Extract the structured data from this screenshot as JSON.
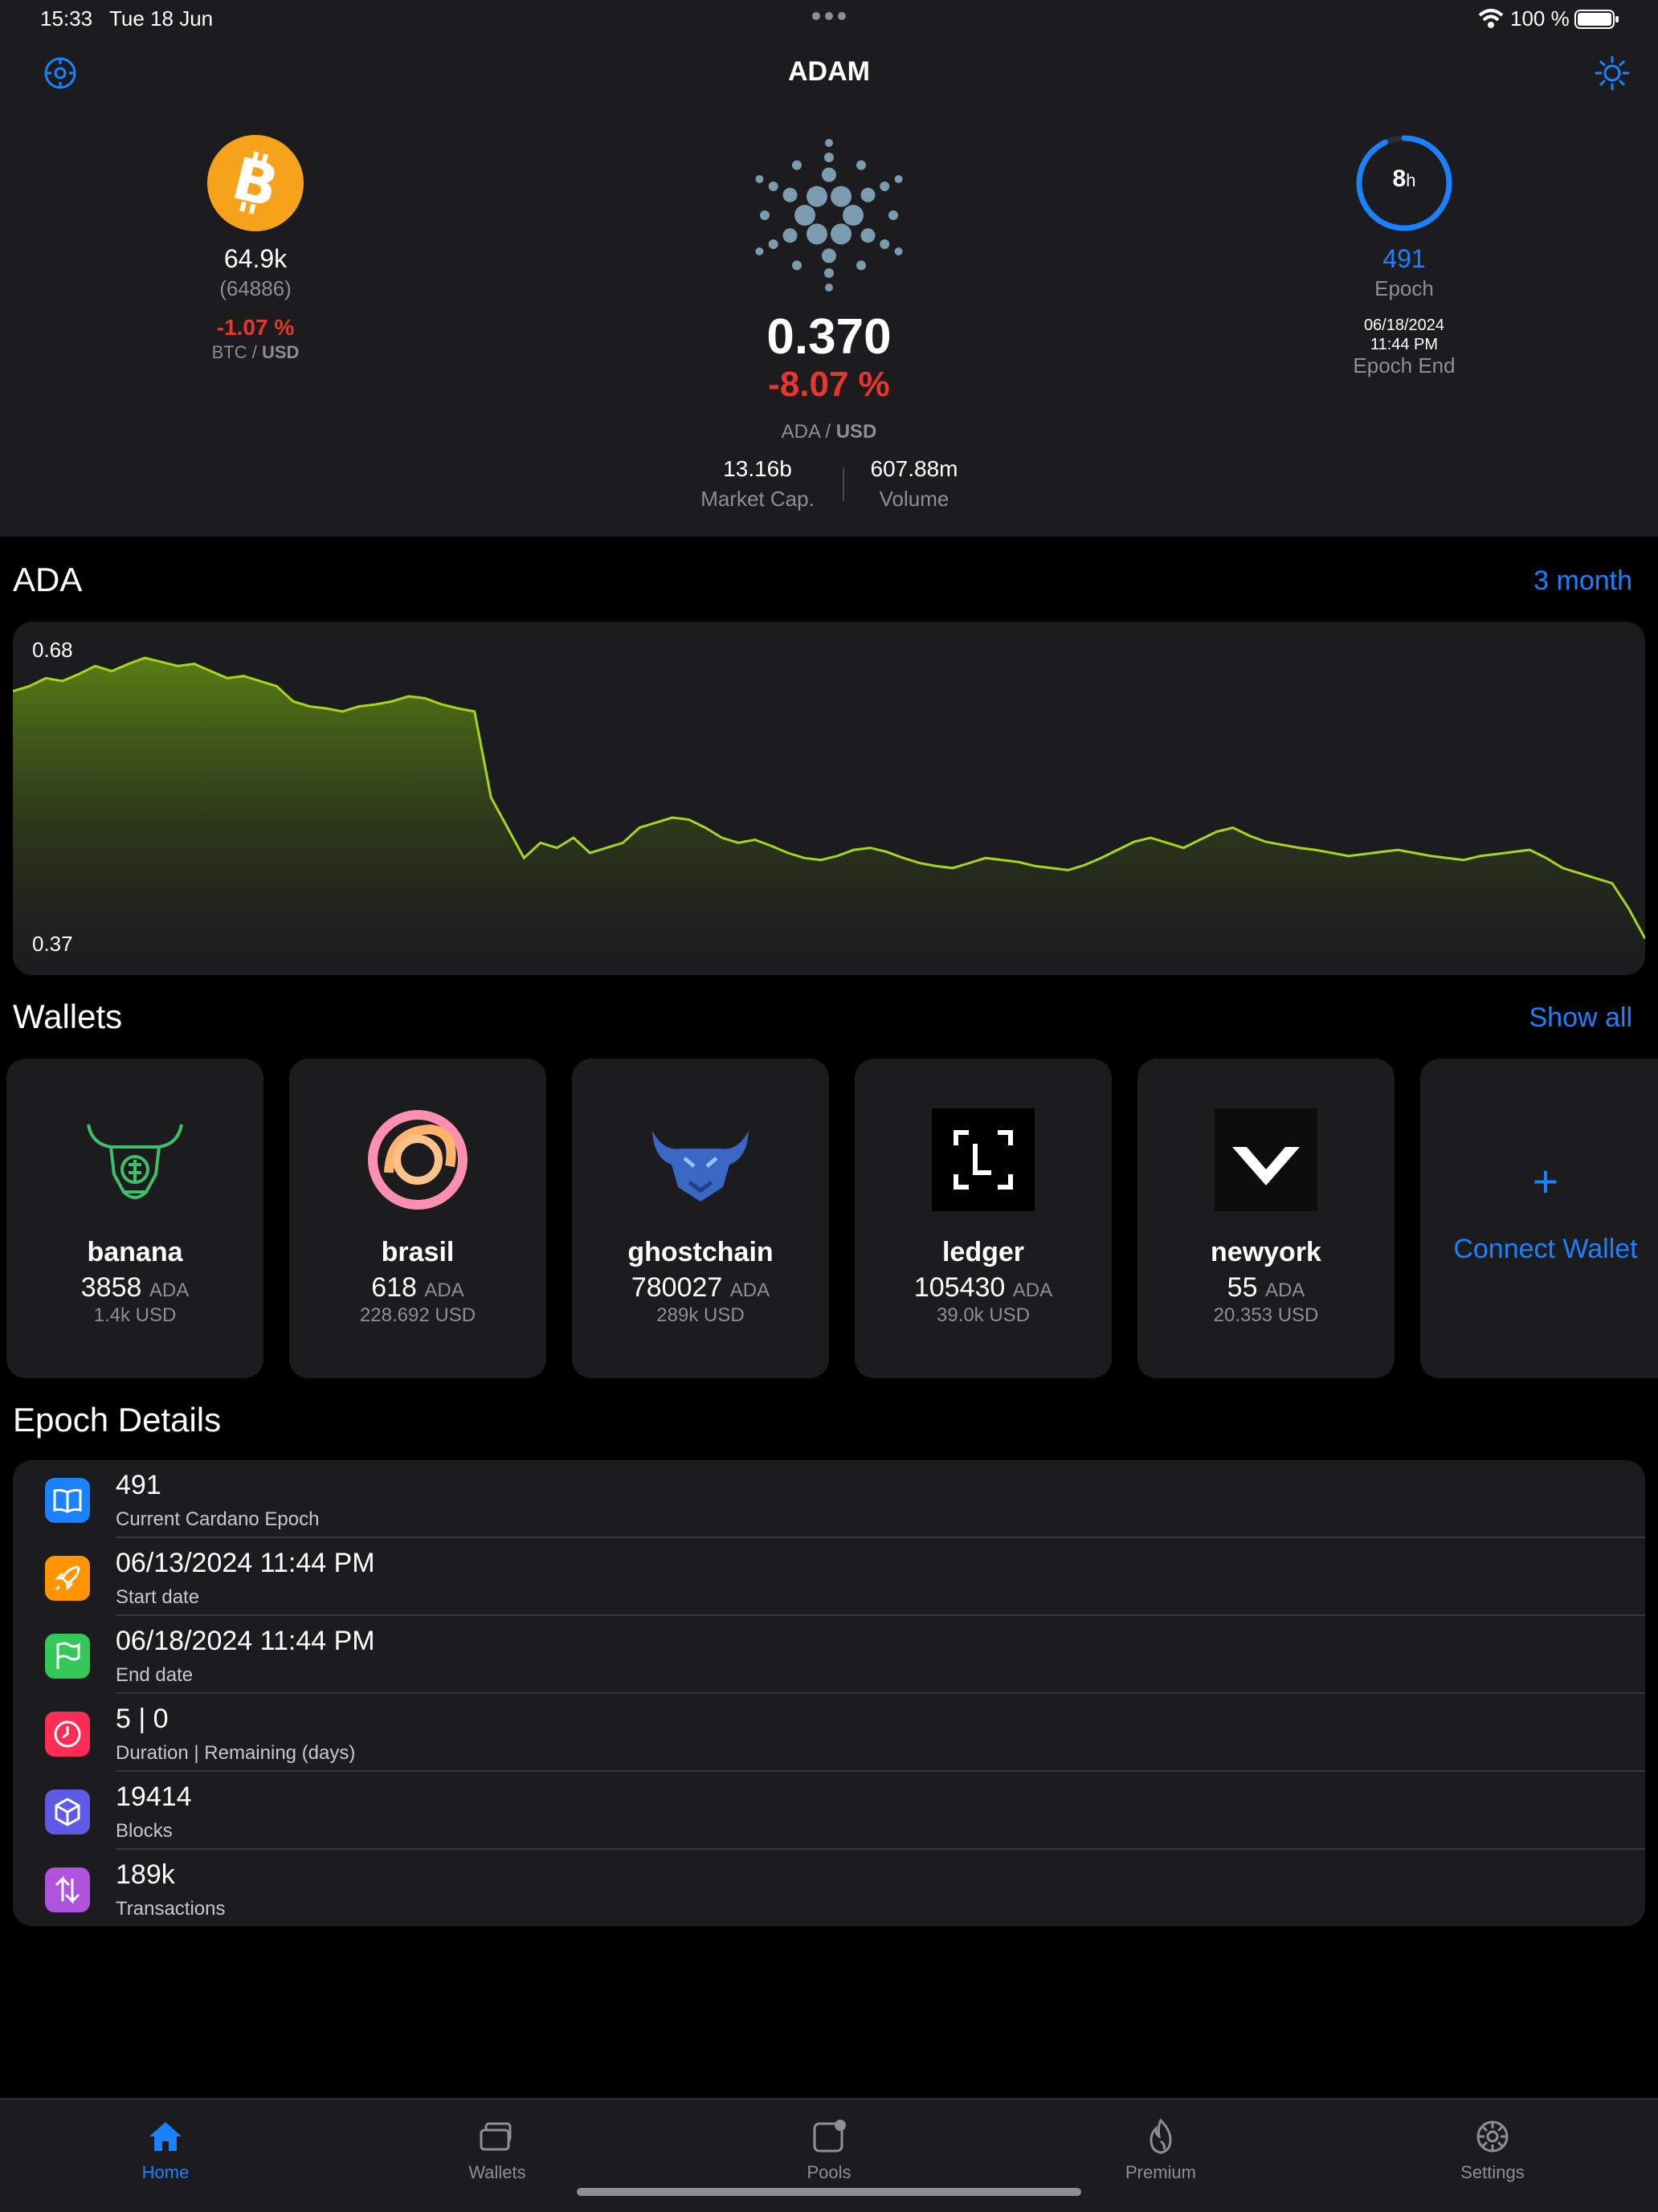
{
  "status_bar": {
    "time": "15:33",
    "date": "Tue 18 Jun",
    "battery": "100 %"
  },
  "header": {
    "title": "ADAM"
  },
  "btc": {
    "price": "64.9k",
    "price_exact": "(64886)",
    "change": "-1.07 %",
    "pair_base": "BTC",
    "pair_sep": " / ",
    "pair_quote": "USD"
  },
  "ada": {
    "price": "0.370",
    "change": "-8.07 %",
    "pair_base": "ADA",
    "pair_sep": " / ",
    "pair_quote": "USD",
    "market_cap": "13.16b",
    "market_cap_label": "Market Cap.",
    "volume": "607.88m",
    "volume_label": "Volume"
  },
  "epoch_summary": {
    "remaining_value": "8",
    "remaining_unit": "h",
    "remaining_fraction": 0.93,
    "epoch": "491",
    "epoch_label": "Epoch",
    "end_date": "06/18/2024",
    "end_time": "11:44 PM",
    "end_label": "Epoch End"
  },
  "chart_section": {
    "title": "ADA",
    "range": "3 month"
  },
  "chart_data": {
    "type": "area",
    "ymax_label": "0.68",
    "ymin_label": "0.37",
    "ylim": [
      0.37,
      0.68
    ],
    "values": [
      0.635,
      0.64,
      0.648,
      0.645,
      0.652,
      0.66,
      0.655,
      0.662,
      0.668,
      0.664,
      0.66,
      0.662,
      0.655,
      0.648,
      0.65,
      0.645,
      0.64,
      0.625,
      0.62,
      0.618,
      0.615,
      0.62,
      0.622,
      0.625,
      0.63,
      0.628,
      0.622,
      0.618,
      0.615,
      0.53,
      0.5,
      0.47,
      0.485,
      0.48,
      0.49,
      0.475,
      0.48,
      0.485,
      0.5,
      0.505,
      0.51,
      0.508,
      0.5,
      0.49,
      0.485,
      0.488,
      0.482,
      0.475,
      0.47,
      0.468,
      0.472,
      0.478,
      0.48,
      0.476,
      0.47,
      0.465,
      0.462,
      0.46,
      0.465,
      0.47,
      0.468,
      0.466,
      0.462,
      0.46,
      0.458,
      0.463,
      0.47,
      0.478,
      0.486,
      0.49,
      0.485,
      0.48,
      0.488,
      0.496,
      0.5,
      0.492,
      0.486,
      0.483,
      0.48,
      0.478,
      0.475,
      0.472,
      0.474,
      0.476,
      0.478,
      0.475,
      0.472,
      0.47,
      0.468,
      0.472,
      0.474,
      0.476,
      0.478,
      0.47,
      0.46,
      0.455,
      0.45,
      0.445,
      0.42,
      0.39
    ]
  },
  "wallets_section": {
    "title": "Wallets",
    "link": "Show all"
  },
  "wallets": [
    {
      "name": "banana",
      "ada": "3858",
      "unit": "ADA",
      "usd": "1.4k  USD"
    },
    {
      "name": "brasil",
      "ada": "618",
      "unit": "ADA",
      "usd": "228.692  USD"
    },
    {
      "name": "ghostchain",
      "ada": "780027",
      "unit": "ADA",
      "usd": "289k  USD"
    },
    {
      "name": "ledger",
      "ada": "105430",
      "unit": "ADA",
      "usd": "39.0k  USD"
    },
    {
      "name": "newyork",
      "ada": "55",
      "unit": "ADA",
      "usd": "20.353  USD"
    }
  ],
  "connect_wallet": {
    "plus": "+",
    "label": "Connect Wallet"
  },
  "epoch_details": {
    "title": "Epoch Details",
    "rows": [
      {
        "value": "491",
        "label": "Current Cardano Epoch",
        "icon": "book-icon",
        "color": "#1a82ff"
      },
      {
        "value": "06/13/2024 11:44 PM",
        "label": "Start date",
        "icon": "rocket-icon",
        "color": "#ff9500"
      },
      {
        "value": "06/18/2024 11:44 PM",
        "label": "End date",
        "icon": "flag-icon",
        "color": "#34c759"
      },
      {
        "value": "5 | 0",
        "label": "Duration | Remaining (days)",
        "icon": "clock-icon",
        "color": "#ff2d55"
      },
      {
        "value": "19414",
        "label": "Blocks",
        "icon": "cube-icon",
        "color": "#5e5ce6"
      },
      {
        "value": "189k",
        "label": "Transactions",
        "icon": "arrows-icon",
        "color": "#af52de"
      }
    ]
  },
  "tabs": [
    {
      "label": "Home",
      "icon": "house-icon",
      "active": true
    },
    {
      "label": "Wallets",
      "icon": "wallets-icon"
    },
    {
      "label": "Pools",
      "icon": "pools-icon"
    },
    {
      "label": "Premium",
      "icon": "flame-icon"
    },
    {
      "label": "Settings",
      "icon": "gear-icon"
    }
  ]
}
